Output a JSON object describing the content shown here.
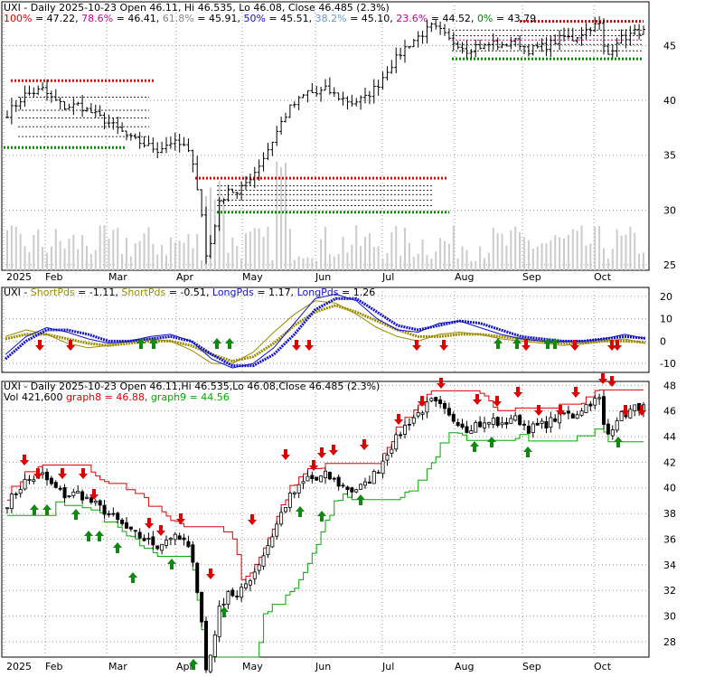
{
  "colors": {
    "up_candle": "#000000",
    "down_candle": "#000000",
    "fib_red": "#e00000",
    "fib_green": "#008800",
    "fib_purple": "#cc0099",
    "short_pds": "#9b8b00",
    "long_pds": "#1010cc",
    "band_upper": "#dd0000",
    "band_lower": "#00aa00",
    "arrow_down": "#dd0000",
    "arrow_up": "#118811",
    "grid": "#999999",
    "volume": "#cccccc",
    "pct_100": "#e00000",
    "pct_786": "#cc0099",
    "pct_618": "#888888",
    "pct_50": "#1010cc",
    "pct_382": "#6699cc",
    "pct_236": "#cc0099",
    "pct_0": "#008800"
  },
  "panel1": {
    "header": {
      "title": "UXI - Daily 2025-10-23 Open 46.11, Hi 46.535, Lo 46.08, Close 46.485 (2.3%)",
      "fib": [
        {
          "label": "100%",
          "value": "= 47.22,",
          "color_key": "pct_100"
        },
        {
          "label": "78.6%",
          "value": "= 46.41,",
          "color_key": "pct_786"
        },
        {
          "label": "61.8%",
          "value": "= 45.91,",
          "color_key": "pct_618"
        },
        {
          "label": "50%",
          "value": "= 45.51,",
          "color_key": "pct_50"
        },
        {
          "label": "38.2%",
          "value": "= 45.10,",
          "color_key": "pct_382"
        },
        {
          "label": "23.6%",
          "value": "= 44.52,",
          "color_key": "pct_236"
        },
        {
          "label": "0%",
          "value": "= 43.79",
          "color_key": "pct_0"
        }
      ]
    }
  },
  "panel2": {
    "header": {
      "prefix": "UXI - ",
      "items": [
        {
          "label": "ShortPds",
          "value": "= -1.11,",
          "color_key": "short_pds"
        },
        {
          "label": "ShortPds",
          "value": "= -0.51,",
          "color_key": "short_pds"
        },
        {
          "label": "LongPds",
          "value": "= 1.17,",
          "color_key": "long_pds"
        },
        {
          "label": "LongPds",
          "value": "= 1.26",
          "color_key": "long_pds"
        }
      ]
    }
  },
  "panel3": {
    "header": {
      "title": "UXI - Daily 2025-10-23 Open 46.11,Hi 46.535,Lo 46.08,Close 46.485 (2.3%)",
      "vol": "Vol 421,600",
      "graph8": "graph8 = 46.88,",
      "graph9": "graph9 = 44.56"
    }
  },
  "chart_data": [
    {
      "type": "candlestick",
      "title": "UXI - Daily 2025-10-23 Open 46.11, Hi 46.535, Lo 46.08, Close 46.485 (2.3%)",
      "x_tick_labels": [
        "2025",
        "Feb",
        "Mar",
        "Apr",
        "May",
        "Jun",
        "Jul",
        "Aug",
        "Sep",
        "Oct"
      ],
      "y_tick_labels": [
        "25",
        "30",
        "35",
        "40",
        "45"
      ],
      "ylim": [
        24.5,
        49
      ],
      "grid": true,
      "fib_levels": {
        "100%": 47.22,
        "78.6%": 46.41,
        "61.8%": 45.91,
        "50%": 45.51,
        "38.2%": 45.1,
        "23.6%": 44.52,
        "0%": 43.79
      },
      "close_path": [
        [
          0,
          38.8
        ],
        [
          4,
          40.5
        ],
        [
          8,
          41.0
        ],
        [
          10,
          40.2
        ],
        [
          13,
          39.4
        ],
        [
          16,
          39.6
        ],
        [
          19,
          38.9
        ],
        [
          22,
          38.2
        ],
        [
          25,
          37.4
        ],
        [
          28,
          36.5
        ],
        [
          31,
          36.0
        ],
        [
          34,
          35.5
        ],
        [
          37,
          36.2
        ],
        [
          40,
          35.8
        ],
        [
          42,
          34.5
        ],
        [
          44,
          29.5
        ],
        [
          45,
          25.8
        ],
        [
          46,
          27.0
        ],
        [
          48,
          30.5
        ],
        [
          50,
          32.0
        ],
        [
          52,
          31.4
        ],
        [
          54,
          32.5
        ],
        [
          56,
          33.5
        ],
        [
          58,
          34.8
        ],
        [
          60,
          36.3
        ],
        [
          62,
          38.0
        ],
        [
          64,
          39.3
        ],
        [
          66,
          40.0
        ],
        [
          68,
          40.8
        ],
        [
          70,
          40.6
        ],
        [
          72,
          41.0
        ],
        [
          75,
          40.3
        ],
        [
          78,
          39.8
        ],
        [
          81,
          40.2
        ],
        [
          84,
          41.5
        ],
        [
          86,
          42.8
        ],
        [
          88,
          43.8
        ],
        [
          90,
          44.8
        ],
        [
          92,
          45.5
        ],
        [
          94,
          46.1
        ],
        [
          96,
          46.7
        ],
        [
          98,
          46.3
        ],
        [
          100,
          45.5
        ],
        [
          102,
          45.2
        ],
        [
          104,
          44.6
        ],
        [
          106,
          45.0
        ],
        [
          108,
          44.9
        ],
        [
          110,
          45.3
        ],
        [
          112,
          44.8
        ],
        [
          114,
          45.5
        ],
        [
          116,
          45.2
        ],
        [
          118,
          44.6
        ],
        [
          120,
          44.8
        ],
        [
          122,
          45.0
        ],
        [
          124,
          45.4
        ],
        [
          126,
          45.8
        ],
        [
          128,
          45.6
        ],
        [
          130,
          46.2
        ],
        [
          132,
          46.7
        ],
        [
          134,
          46.9
        ],
        [
          135,
          44.8
        ],
        [
          136,
          44.2
        ],
        [
          138,
          45.5
        ],
        [
          140,
          45.8
        ],
        [
          142,
          46.2
        ],
        [
          144,
          46.49
        ]
      ],
      "volume_note": "light gray bars at the bottom of the price panel"
    },
    {
      "type": "line",
      "title": "UXI - ShortPds = -1.11, ShortPds = -0.51, LongPds = 1.17, LongPds = 1.26",
      "y_tick_labels": [
        "-10",
        "0",
        "10",
        "20"
      ],
      "ylim": [
        -14,
        24
      ],
      "series": [
        {
          "name": "ShortPds",
          "values": [
            2,
            5,
            3,
            -1,
            -3,
            -2,
            0,
            1,
            0,
            -4,
            -10,
            -10,
            -5,
            4,
            12,
            18,
            17,
            12,
            6,
            2,
            0,
            3,
            4,
            3,
            1,
            0,
            -1,
            -2,
            -1,
            0,
            1,
            -1.11
          ]
        },
        {
          "name": "ShortPds",
          "values": [
            1,
            3,
            3,
            1,
            -1,
            -2,
            -1,
            0,
            0,
            -2,
            -6,
            -9,
            -7,
            -1,
            7,
            13,
            16,
            13,
            9,
            5,
            2,
            2,
            3,
            3,
            2,
            1,
            0,
            -1,
            -1,
            0,
            0,
            -0.51
          ]
        },
        {
          "name": "LongPds",
          "values": [
            -6,
            2,
            6,
            4,
            1,
            -1,
            0,
            2,
            3,
            0,
            -8,
            -12,
            -10,
            -3,
            8,
            19,
            21,
            18,
            10,
            5,
            4,
            8,
            9,
            6,
            3,
            1,
            0,
            0,
            0,
            1,
            3,
            1.17
          ]
        },
        {
          "name": "LongPds",
          "values": [
            -8,
            0,
            5,
            5,
            3,
            0,
            0,
            1,
            2,
            0,
            -6,
            -11,
            -11,
            -6,
            3,
            14,
            19,
            19,
            13,
            7,
            5,
            7,
            9,
            8,
            5,
            2,
            1,
            0,
            0,
            1,
            2,
            1.26
          ]
        }
      ]
    },
    {
      "type": "candlestick",
      "title": "UXI - Daily 2025-10-23 Open 46.11,Hi 46.535,Lo 46.08,Close 46.485 (2.3%)",
      "x_tick_labels": [
        "2025",
        "Feb",
        "Mar",
        "Apr",
        "May",
        "Jun",
        "Jul",
        "Aug",
        "Sep",
        "Oct"
      ],
      "y_tick_labels": [
        "28",
        "30",
        "32",
        "34",
        "36",
        "38",
        "40",
        "42",
        "44",
        "46",
        "48"
      ],
      "ylim": [
        26.8,
        48.3
      ],
      "grid": true,
      "series": [
        {
          "name": "graph8",
          "last": 46.88
        },
        {
          "name": "graph9",
          "last": 44.56
        }
      ],
      "volume": "421,600"
    }
  ]
}
